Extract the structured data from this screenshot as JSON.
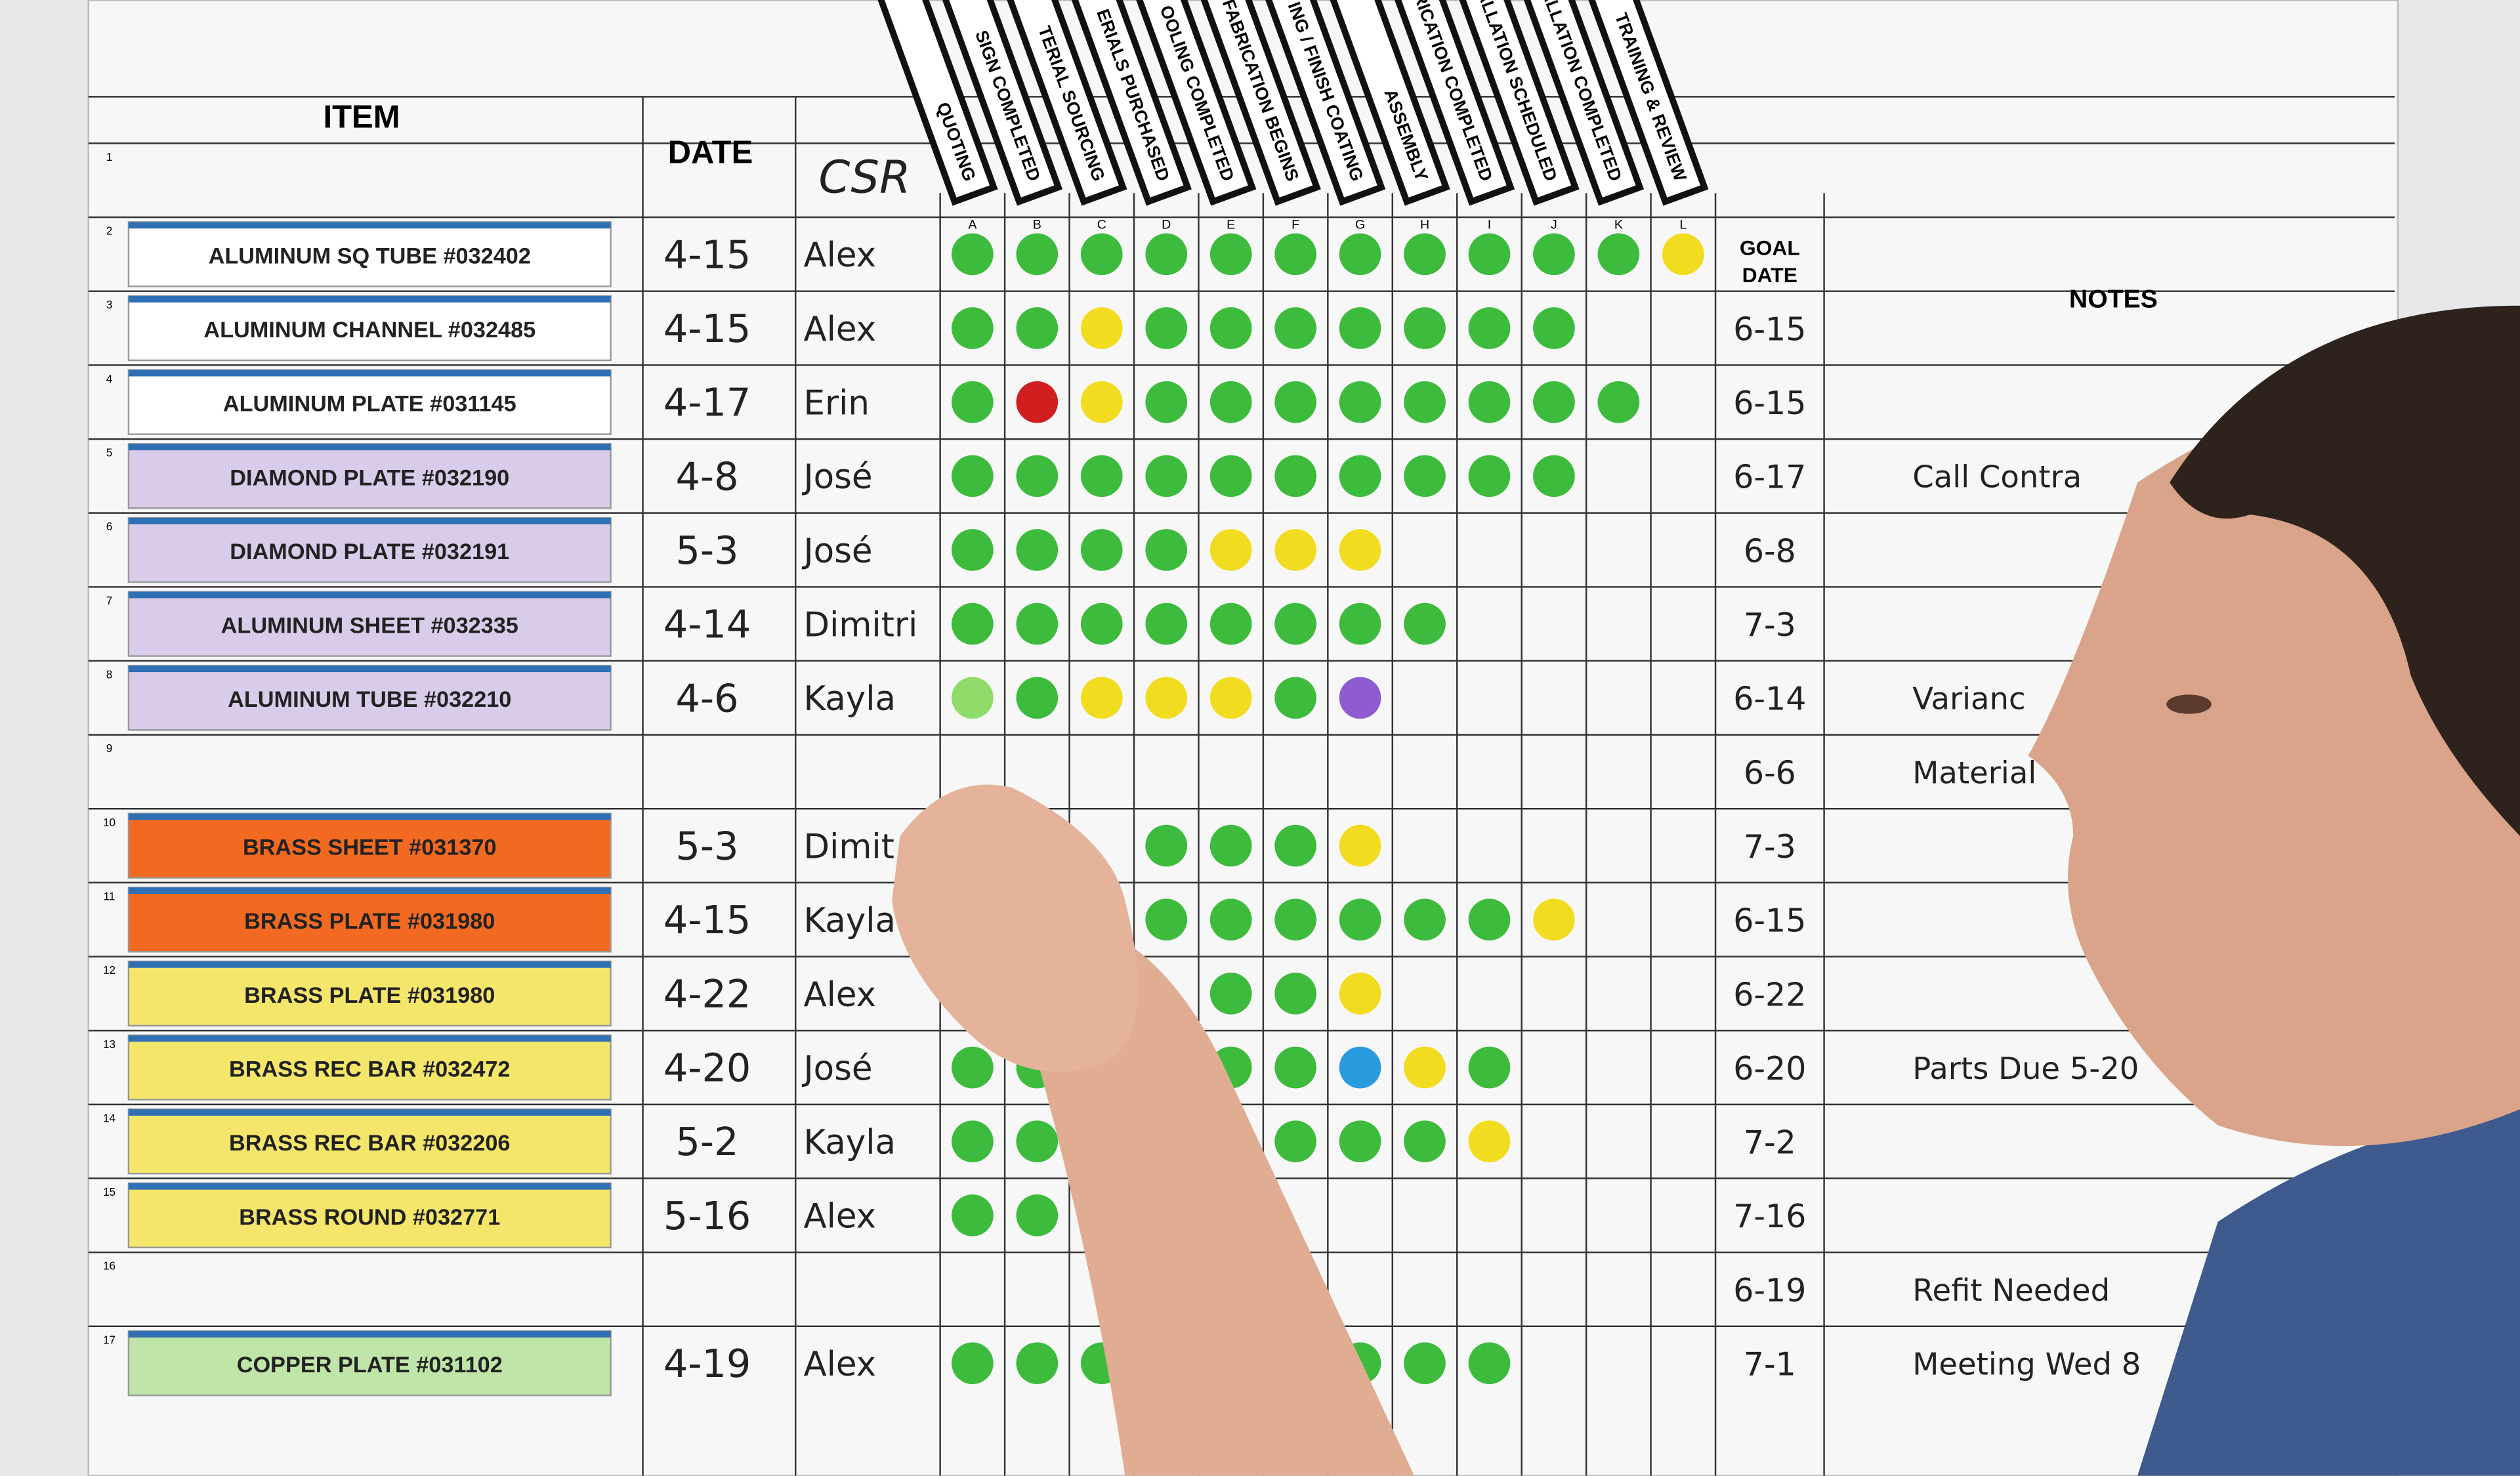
{
  "header": {
    "item": "ITEM",
    "date": "DATE",
    "csr": "CSR",
    "goal": [
      "GOAL",
      "DATE"
    ],
    "notes": "NOTES"
  },
  "stages": [
    {
      "letter": "A",
      "label": "QUOTING"
    },
    {
      "letter": "B",
      "label": "SIGN COMPLETED"
    },
    {
      "letter": "C",
      "label": "TERIAL SOURCING"
    },
    {
      "letter": "D",
      "label": "ERIALS PURCHASED"
    },
    {
      "letter": "E",
      "label": "OOLING COMPLETED"
    },
    {
      "letter": "F",
      "label": "FABRICATION BEGINS"
    },
    {
      "letter": "G",
      "label": "ING / FINISH COATING"
    },
    {
      "letter": "H",
      "label": "ASSEMBLY"
    },
    {
      "letter": "I",
      "label": "ABRICATION COMPLETED"
    },
    {
      "letter": "J",
      "label": "STALLATION SCHEDULED"
    },
    {
      "letter": "K",
      "label": "ISTALLATION COMPLETED"
    },
    {
      "letter": "L",
      "label": "TRAINING & REVIEW"
    }
  ],
  "rows": [
    {
      "num": 1
    },
    {
      "num": 2,
      "item": "ALUMINUM SQ TUBE #032402",
      "color": "#ffffff",
      "date": "4-15",
      "csr": "Alex",
      "dots": [
        "#3dbb3d",
        "#3dbb3d",
        "#3dbb3d",
        "#3dbb3d",
        "#3dbb3d",
        "#3dbb3d",
        "#3dbb3d",
        "#3dbb3d",
        "#3dbb3d",
        "#3dbb3d",
        "#3dbb3d",
        "#f2dc1f"
      ]
    },
    {
      "num": 3,
      "item": "ALUMINUM CHANNEL #032485",
      "color": "#ffffff",
      "date": "4-15",
      "csr": "Alex",
      "goal": "6-15",
      "dots": [
        "#3dbb3d",
        "#3dbb3d",
        "#f2dc1f",
        "#3dbb3d",
        "#3dbb3d",
        "#3dbb3d",
        "#3dbb3d",
        "#3dbb3d",
        "#3dbb3d",
        "#3dbb3d"
      ]
    },
    {
      "num": 4,
      "item": "ALUMINUM PLATE #031145",
      "color": "#ffffff",
      "date": "4-17",
      "csr": "Erin",
      "goal": "6-15",
      "dots": [
        "#3dbb3d",
        "#d11f1f",
        "#f2dc1f",
        "#3dbb3d",
        "#3dbb3d",
        "#3dbb3d",
        "#3dbb3d",
        "#3dbb3d",
        "#3dbb3d",
        "#3dbb3d",
        "#3dbb3d"
      ]
    },
    {
      "num": 5,
      "item": "DIAMOND PLATE #032190",
      "color": "#d9ccea",
      "date": "4-8",
      "csr": "José",
      "goal": "6-17",
      "note": "Call Contra",
      "dots": [
        "#3dbb3d",
        "#3dbb3d",
        "#3dbb3d",
        "#3dbb3d",
        "#3dbb3d",
        "#3dbb3d",
        "#3dbb3d",
        "#3dbb3d",
        "#3dbb3d",
        "#3dbb3d"
      ]
    },
    {
      "num": 6,
      "item": "DIAMOND PLATE #032191",
      "color": "#d9ccea",
      "date": "5-3",
      "csr": "José",
      "goal": "6-8",
      "dots": [
        "#3dbb3d",
        "#3dbb3d",
        "#3dbb3d",
        "#3dbb3d",
        "#f2dc1f",
        "#f2dc1f",
        "#f2dc1f"
      ]
    },
    {
      "num": 7,
      "item": "ALUMINUM SHEET #032335",
      "color": "#d9ccea",
      "date": "4-14",
      "csr": "Dimitri",
      "goal": "7-3",
      "dots": [
        "#3dbb3d",
        "#3dbb3d",
        "#3dbb3d",
        "#3dbb3d",
        "#3dbb3d",
        "#3dbb3d",
        "#3dbb3d",
        "#3dbb3d"
      ]
    },
    {
      "num": 8,
      "item": "ALUMINUM TUBE #032210",
      "color": "#d9ccea",
      "date": "4-6",
      "csr": "Kayla",
      "goal": "6-14",
      "note": "Varianc",
      "dots": [
        "#8fdc6a",
        "#3dbb3d",
        "#f2dc1f",
        "#f2dc1f",
        "#f2dc1f",
        "#3dbb3d",
        "#8e5bd0"
      ]
    },
    {
      "num": 9,
      "goal": "6-6",
      "note": "Material"
    },
    {
      "num": 10,
      "item": "BRASS SHEET #031370",
      "color": "#f26a21",
      "date": "5-3",
      "csr": "Dimit",
      "goal": "7-3",
      "dots": [
        null,
        null,
        null,
        "#3dbb3d",
        "#3dbb3d",
        "#3dbb3d",
        "#f2dc1f"
      ]
    },
    {
      "num": 11,
      "item": "BRASS PLATE #031980",
      "color": "#f26a21",
      "date": "4-15",
      "csr": "Kayla",
      "goal": "6-15",
      "dots": [
        null,
        null,
        null,
        "#3dbb3d",
        "#3dbb3d",
        "#3dbb3d",
        "#3dbb3d",
        "#3dbb3d",
        "#3dbb3d",
        "#f2dc1f"
      ]
    },
    {
      "num": 12,
      "item": "BRASS PLATE #031980",
      "color": "#f4e66a",
      "date": "4-22",
      "csr": "Alex",
      "goal": "6-22",
      "dots": [
        null,
        null,
        null,
        null,
        "#3dbb3d",
        "#3dbb3d",
        "#f2dc1f"
      ]
    },
    {
      "num": 13,
      "item": "BRASS REC BAR #032472",
      "color": "#f4e66a",
      "date": "4-20",
      "csr": "José",
      "goal": "6-20",
      "note": "Parts Due 5-20",
      "dots": [
        "#3dbb3d",
        "#3dbb3d",
        null,
        null,
        "#3dbb3d",
        "#3dbb3d",
        "#2b9be0",
        "#f2dc1f",
        "#3dbb3d"
      ]
    },
    {
      "num": 14,
      "item": "BRASS REC BAR #032206",
      "color": "#f4e66a",
      "date": "5-2",
      "csr": "Kayla",
      "goal": "7-2",
      "dots": [
        "#3dbb3d",
        "#3dbb3d",
        "#3dbb3d",
        null,
        null,
        "#3dbb3d",
        "#3dbb3d",
        "#3dbb3d",
        "#f2dc1f"
      ]
    },
    {
      "num": 15,
      "item": "BRASS ROUND #032771",
      "color": "#f4e66a",
      "date": "5-16",
      "csr": "Alex",
      "goal": "7-16",
      "dots": [
        "#3dbb3d",
        "#3dbb3d",
        "#f2dc1f"
      ]
    },
    {
      "num": 16,
      "goal": "6-19",
      "note": "Refit Needed"
    },
    {
      "num": 17,
      "item": "COPPER PLATE #031102",
      "color": "#bfe6a8",
      "date": "4-19",
      "csr": "Alex",
      "goal": "7-1",
      "note": "Meeting Wed 8",
      "dots": [
        "#3dbb3d",
        "#3dbb3d",
        "#3dbb3d",
        null,
        null,
        null,
        "#3dbb3d",
        "#3dbb3d",
        "#3dbb3d"
      ]
    }
  ]
}
